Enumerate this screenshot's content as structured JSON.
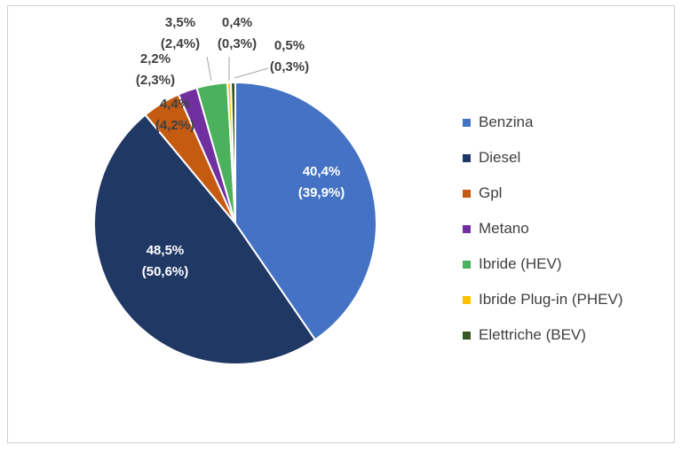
{
  "chart_data": {
    "type": "pie",
    "start_angle_deg": 0,
    "direction": "clockwise",
    "slices": [
      {
        "name": "Benzina",
        "value": 40.4,
        "label": "40,4%",
        "sublabel": "(39,9%)",
        "color": "#4472C4",
        "label_color": "#ffffff"
      },
      {
        "name": "Diesel",
        "value": 48.5,
        "label": "48,5%",
        "sublabel": "(50,6%)",
        "color": "#203864",
        "label_color": "#ffffff"
      },
      {
        "name": "Gpl",
        "value": 4.4,
        "label": "4,4%",
        "sublabel": "(4,2%)",
        "color": "#C55A11",
        "label_color": "#404040"
      },
      {
        "name": "Metano",
        "value": 2.2,
        "label": "2,2%",
        "sublabel": "(2,3%)",
        "color": "#7030A0",
        "label_color": "#404040"
      },
      {
        "name": "Ibride (HEV)",
        "value": 3.5,
        "label": "3,5%",
        "sublabel": "(2,4%)",
        "color": "#4CB15C",
        "label_color": "#404040"
      },
      {
        "name": "Ibride Plug-in  (PHEV)",
        "value": 0.4,
        "label": "0,4%",
        "sublabel": "(0,3%)",
        "color": "#FFC000",
        "label_color": "#404040"
      },
      {
        "name": "Elettriche (BEV)",
        "value": 0.5,
        "label": "0,5%",
        "sublabel": "(0,3%)",
        "color": "#375623",
        "label_color": "#404040"
      }
    ],
    "legend_position": "right"
  }
}
